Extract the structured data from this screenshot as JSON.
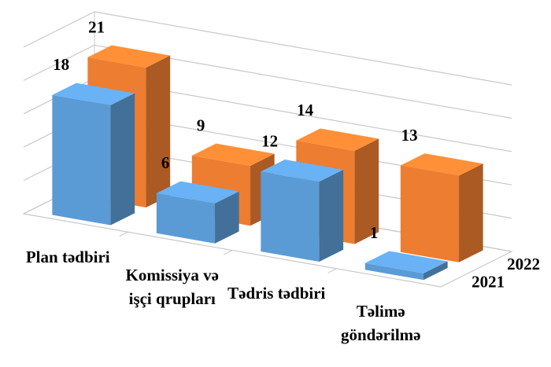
{
  "chart_data": {
    "type": "bar3d",
    "categories": [
      "Plan tədbiri",
      "Komissiya və işçi qrupları",
      "Tədris tədbiri",
      "Təlimə göndərilmə"
    ],
    "series": [
      {
        "name": "2021",
        "color": "#5b9bd5",
        "values": [
          18,
          6,
          12,
          1
        ]
      },
      {
        "name": "2022",
        "color": "#ed7d31",
        "values": [
          21,
          9,
          14,
          13
        ]
      }
    ],
    "ylim": [
      0,
      25
    ],
    "grid": true
  }
}
